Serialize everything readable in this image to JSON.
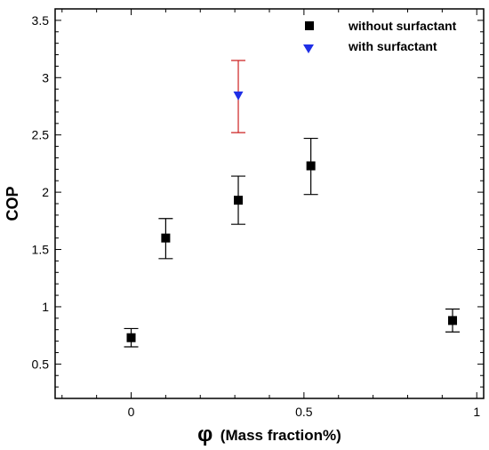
{
  "chart_data": {
    "type": "scatter",
    "xlabel": "φ (Mass fraction%)",
    "xlabel_symbol": "φ",
    "xlabel_text": "(Mass fraction%)",
    "ylabel": "COP",
    "xlim": [
      -0.22,
      1.02
    ],
    "ylim": [
      0.2,
      3.6
    ],
    "xticks": [
      0,
      0.5,
      1
    ],
    "xtick_labels": [
      "0",
      "0.5",
      "1"
    ],
    "yticks": [
      0.5,
      1,
      1.5,
      2,
      2.5,
      3,
      3.5
    ],
    "ytick_labels": [
      "0.5",
      "1",
      "1.5",
      "2",
      "2.5",
      "3",
      "3.5"
    ],
    "grid": false,
    "legend_position": "top-right",
    "series": [
      {
        "name": "without surfactant",
        "marker": "square",
        "color": "#000000",
        "errorbar_color": "#000000",
        "points": [
          {
            "x": 0,
            "y": 0.73,
            "ylow": 0.65,
            "yhigh": 0.81
          },
          {
            "x": 0.1,
            "y": 1.6,
            "ylow": 1.42,
            "yhigh": 1.77
          },
          {
            "x": 0.31,
            "y": 1.93,
            "ylow": 1.72,
            "yhigh": 2.14
          },
          {
            "x": 0.52,
            "y": 2.23,
            "ylow": 1.98,
            "yhigh": 2.47
          },
          {
            "x": 0.93,
            "y": 0.88,
            "ylow": 0.78,
            "yhigh": 0.98
          }
        ]
      },
      {
        "name": "with surfactant",
        "marker": "triangle-down",
        "color": "#1f2fe6",
        "errorbar_color": "#cc2222",
        "points": [
          {
            "x": 0.31,
            "y": 2.84,
            "ylow": 2.52,
            "yhigh": 3.15
          }
        ]
      }
    ]
  }
}
